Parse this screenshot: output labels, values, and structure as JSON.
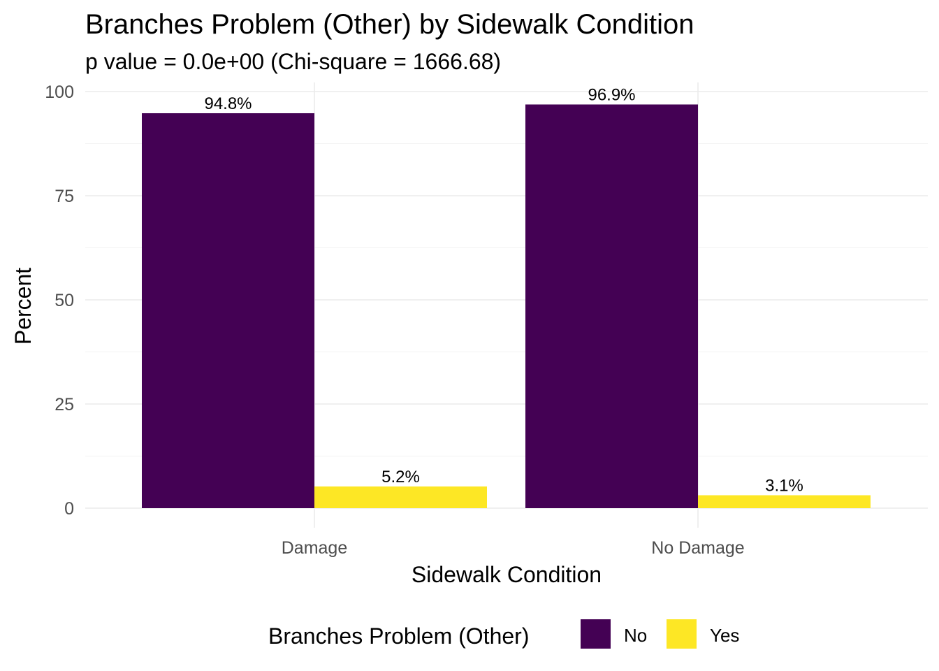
{
  "chart_data": {
    "type": "bar",
    "title": "Branches Problem (Other) by Sidewalk Condition",
    "subtitle": "p value = 0.0e+00 (Chi-square = 1666.68)",
    "xlabel": "Sidewalk Condition",
    "ylabel": "Percent",
    "categories": [
      "Damage",
      "No Damage"
    ],
    "series": [
      {
        "name": "No",
        "color": "#440154",
        "values": [
          94.8,
          96.9
        ],
        "labels": [
          "94.8%",
          "96.9%"
        ]
      },
      {
        "name": "Yes",
        "color": "#FDE725",
        "values": [
          5.2,
          3.1
        ],
        "labels": [
          "5.2%",
          "3.1%"
        ]
      }
    ],
    "ylim": [
      0,
      100
    ],
    "yticks": [
      0,
      25,
      50,
      75,
      100
    ],
    "ytick_labels": [
      "0",
      "25",
      "50",
      "75",
      "100"
    ],
    "grid": true,
    "legend": {
      "title": "Branches Problem (Other)",
      "position": "bottom"
    }
  }
}
